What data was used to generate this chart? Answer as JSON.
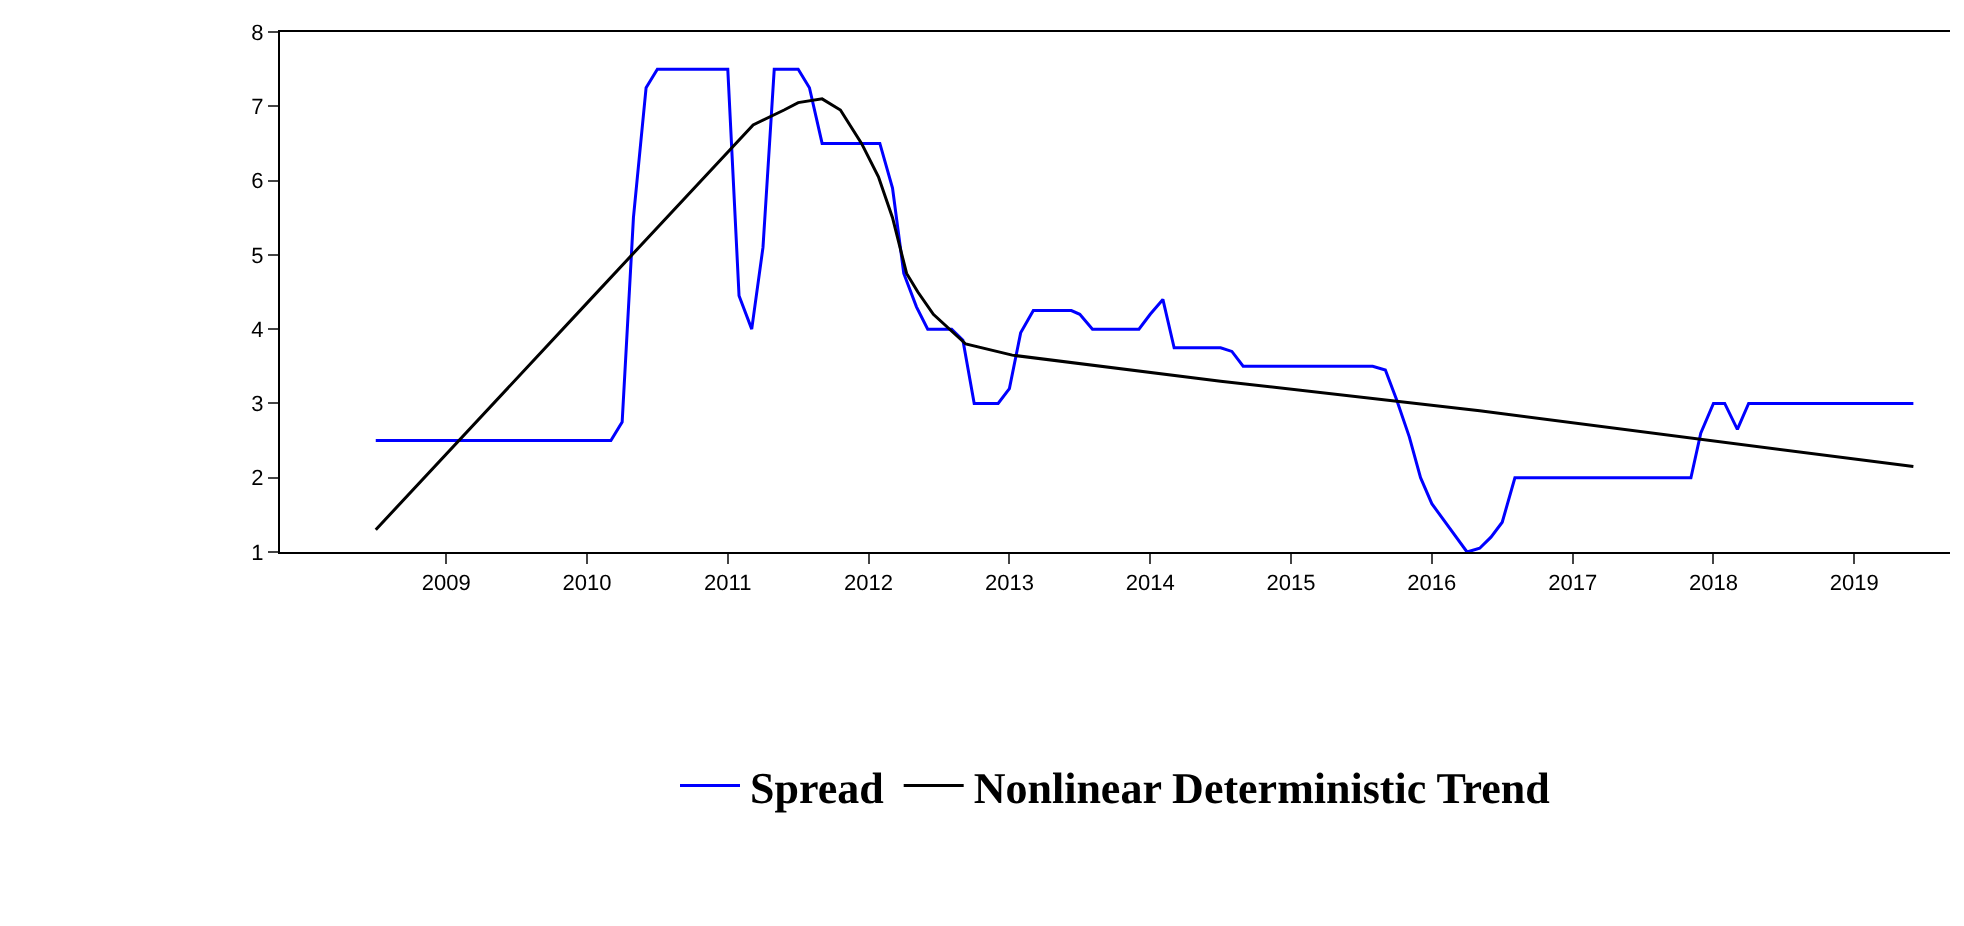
{
  "chart_data": {
    "type": "line",
    "series": [
      {
        "name": "Spread",
        "color": "#0000ff",
        "x": [
          2009.0,
          2010.67,
          2010.75,
          2010.83,
          2010.92,
          2011.0,
          2011.5,
          2011.58,
          2011.67,
          2011.75,
          2011.83,
          2012.0,
          2012.08,
          2012.17,
          2012.58,
          2012.67,
          2012.75,
          2012.84,
          2012.92,
          2013.09,
          2013.17,
          2013.25,
          2013.42,
          2013.5,
          2013.58,
          2013.67,
          2013.94,
          2014.0,
          2014.09,
          2014.42,
          2014.5,
          2014.59,
          2014.67,
          2015.0,
          2015.08,
          2015.16,
          2016.08,
          2016.17,
          2016.25,
          2016.34,
          2016.42,
          2016.5,
          2016.75,
          2016.84,
          2016.92,
          2017.0,
          2017.09,
          2018.34,
          2018.41,
          2018.5,
          2018.58,
          2018.67,
          2018.75,
          2019.92
        ],
        "values": [
          2.5,
          2.5,
          2.75,
          5.5,
          7.25,
          7.5,
          7.5,
          4.45,
          4.0,
          5.1,
          7.5,
          7.5,
          7.25,
          6.5,
          6.5,
          5.9,
          4.75,
          4.3,
          4.0,
          4.0,
          3.85,
          3.0,
          3.0,
          3.2,
          3.95,
          4.25,
          4.25,
          4.2,
          4.0,
          4.0,
          4.2,
          4.4,
          3.75,
          3.75,
          3.7,
          3.5,
          3.5,
          3.45,
          3.05,
          2.55,
          2.0,
          1.65,
          1.0,
          1.05,
          1.2,
          1.4,
          2.0,
          2.0,
          2.6,
          3.0,
          3.0,
          2.65,
          3.0,
          3.0
        ]
      },
      {
        "name": "Nonlinear Deterministic Trend",
        "color": "#000000",
        "x": [
          2009.0,
          2010.5,
          2011.68,
          2011.9,
          2012.0,
          2012.17,
          2012.3,
          2012.45,
          2012.57,
          2012.67,
          2012.77,
          2012.85,
          2012.96,
          2013.19,
          2013.52,
          2015.0,
          2016.84,
          2019.92
        ],
        "values": [
          1.3,
          4.35,
          6.75,
          6.95,
          7.05,
          7.1,
          6.95,
          6.5,
          6.05,
          5.5,
          4.75,
          4.5,
          4.2,
          3.8,
          3.65,
          3.3,
          2.9,
          2.15
        ]
      }
    ],
    "xlim": [
      2008.32,
      2020.18
    ],
    "xticks": [
      {
        "value": 2009.5,
        "label": "2009"
      },
      {
        "value": 2010.5,
        "label": "2010"
      },
      {
        "value": 2011.5,
        "label": "2011"
      },
      {
        "value": 2012.5,
        "label": "2012"
      },
      {
        "value": 2013.5,
        "label": "2013"
      },
      {
        "value": 2014.5,
        "label": "2014"
      },
      {
        "value": 2015.5,
        "label": "2015"
      },
      {
        "value": 2016.5,
        "label": "2016"
      },
      {
        "value": 2017.5,
        "label": "2017"
      },
      {
        "value": 2018.5,
        "label": "2018"
      },
      {
        "value": 2019.5,
        "label": "2019"
      }
    ],
    "ylim": [
      1,
      8
    ],
    "yticks": [
      1,
      2,
      3,
      4,
      5,
      6,
      7,
      8
    ],
    "legend": "bottom",
    "marker": "none",
    "line_style": "solid"
  }
}
